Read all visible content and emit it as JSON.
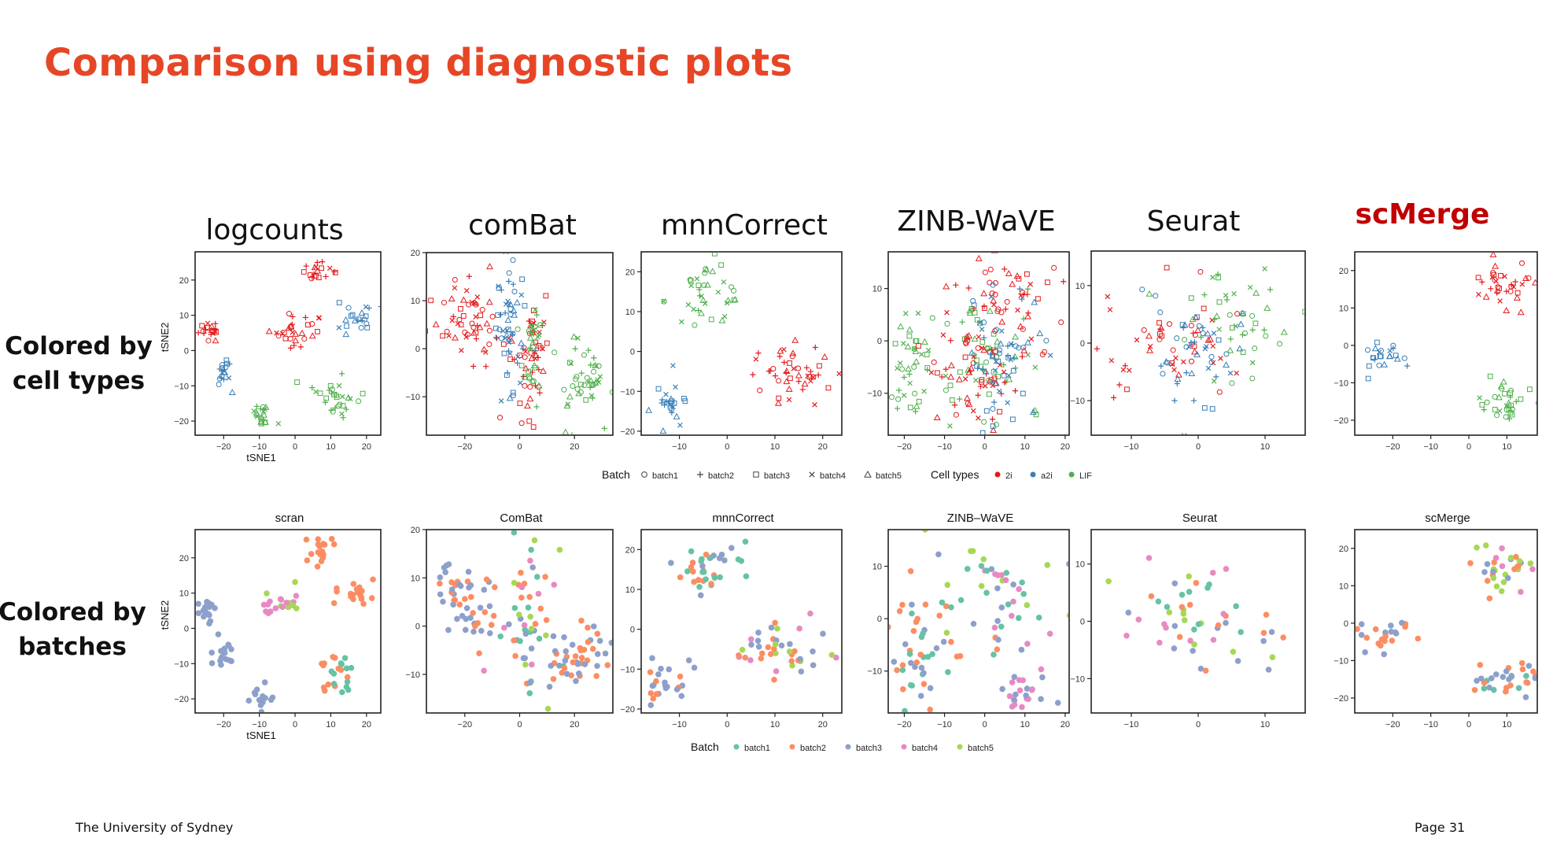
{
  "slide": {
    "title": "Comparison using diagnostic plots",
    "footer_left": "The University of Sydney",
    "footer_right": "Page 31"
  },
  "row_labels": [
    "Colored by\ncell types",
    "Colored by\nbatches"
  ],
  "method_titles": [
    "logcounts",
    "comBat",
    "mnnCorrect",
    "ZINB-WaVE",
    "Seurat",
    "scMerge"
  ],
  "colors": {
    "title": "#e64626",
    "highlight": "#c00000",
    "2i": "#e41a1c",
    "a2i": "#377eb8",
    "LIF": "#4daf4a",
    "batch1": "#66c2a5",
    "batch2": "#fc8d62",
    "batch3": "#8da0cb",
    "batch4": "#e78ac3",
    "batch5": "#a6d854"
  },
  "legend_top": {
    "batch_title": "Batch",
    "batch_items": [
      {
        "label": "batch1",
        "shape": "circle"
      },
      {
        "label": "batch2",
        "shape": "plus"
      },
      {
        "label": "batch3",
        "shape": "square"
      },
      {
        "label": "batch4",
        "shape": "cross"
      },
      {
        "label": "batch5",
        "shape": "triangle"
      }
    ],
    "celltype_title": "Cell types",
    "celltype_items": [
      {
        "label": "2i",
        "color": "#e41a1c"
      },
      {
        "label": "a2i",
        "color": "#377eb8"
      },
      {
        "label": "LIF",
        "color": "#4daf4a"
      }
    ]
  },
  "legend_bottom": {
    "batch_title": "Batch",
    "batch_items": [
      {
        "label": "batch1",
        "color": "#66c2a5"
      },
      {
        "label": "batch2",
        "color": "#fc8d62"
      },
      {
        "label": "batch3",
        "color": "#8da0cb"
      },
      {
        "label": "batch4",
        "color": "#e78ac3"
      },
      {
        "label": "batch5",
        "color": "#a6d854"
      }
    ]
  },
  "chart_data": [
    {
      "id": "top-logcounts",
      "type": "scatter",
      "title": "",
      "xlabel": "tSNE1",
      "ylabel": "tSNE2",
      "xlim": [
        -28,
        24
      ],
      "ylim": [
        -24,
        28
      ],
      "xticks": [
        -20,
        -10,
        0,
        10,
        20
      ],
      "yticks": [
        -20,
        -10,
        0,
        10,
        20
      ],
      "color_by": "cell_type",
      "clusters": [
        {
          "label": "2i",
          "x": -24,
          "y": 6,
          "sx": 1.5,
          "sy": 1.8
        },
        {
          "label": "2i",
          "x": 0,
          "y": 6,
          "sx": 4.5,
          "sy": 2.2
        },
        {
          "label": "2i",
          "x": 6,
          "y": 22,
          "sx": 2,
          "sy": 1.8
        },
        {
          "label": "a2i",
          "x": -20,
          "y": -7,
          "sx": 1.2,
          "sy": 2.2
        },
        {
          "label": "a2i",
          "x": 17,
          "y": 9,
          "sx": 3,
          "sy": 1.8
        },
        {
          "label": "LIF",
          "x": -9,
          "y": -18,
          "sx": 1.5,
          "sy": 2.5
        },
        {
          "label": "LIF",
          "x": 11,
          "y": -13,
          "sx": 3,
          "sy": 3.5
        }
      ]
    },
    {
      "id": "top-combat",
      "type": "scatter",
      "title": "",
      "xlabel": "",
      "ylabel": "",
      "xlim": [
        -34,
        34
      ],
      "ylim": [
        -18,
        20
      ],
      "xticks": [
        -20,
        0,
        20
      ],
      "yticks": [
        -10,
        0,
        10,
        20
      ],
      "color_by": "cell_type",
      "clusters": [
        {
          "label": "2i",
          "x": -18,
          "y": 6,
          "sx": 7,
          "sy": 4
        },
        {
          "label": "2i",
          "x": 3,
          "y": -2,
          "sx": 3,
          "sy": 8
        },
        {
          "label": "a2i",
          "x": -4,
          "y": 3,
          "sx": 3,
          "sy": 9
        },
        {
          "label": "LIF",
          "x": 22,
          "y": -6,
          "sx": 5,
          "sy": 4
        },
        {
          "label": "LIF",
          "x": 5,
          "y": -1,
          "sx": 2,
          "sy": 5
        }
      ]
    },
    {
      "id": "top-mnncorrect",
      "type": "scatter",
      "title": "",
      "xlabel": "",
      "ylabel": "",
      "xlim": [
        -18,
        24
      ],
      "ylim": [
        -21,
        25
      ],
      "xticks": [
        -10,
        0,
        10,
        20
      ],
      "yticks": [
        -20,
        -10,
        0,
        10,
        20
      ],
      "color_by": "cell_type",
      "clusters": [
        {
          "label": "LIF",
          "x": -5,
          "y": 15,
          "sx": 4,
          "sy": 4
        },
        {
          "label": "a2i",
          "x": -12,
          "y": -13,
          "sx": 2.5,
          "sy": 3
        },
        {
          "label": "2i",
          "x": 12,
          "y": -5,
          "sx": 5.5,
          "sy": 4
        }
      ]
    },
    {
      "id": "top-zinbwave",
      "type": "scatter",
      "title": "",
      "xlabel": "",
      "ylabel": "",
      "xlim": [
        -24,
        21
      ],
      "ylim": [
        -18,
        17
      ],
      "xticks": [
        -20,
        -10,
        0,
        10,
        20
      ],
      "yticks": [
        -10,
        0,
        10
      ],
      "color_by": "cell_type",
      "clusters": [
        {
          "label": "LIF",
          "x": -18,
          "y": -5,
          "sx": 3,
          "sy": 6
        },
        {
          "label": "LIF",
          "x": 0,
          "y": -3,
          "sx": 6,
          "sy": 7
        },
        {
          "label": "2i",
          "x": 5,
          "y": 7,
          "sx": 8,
          "sy": 5
        },
        {
          "label": "2i",
          "x": -3,
          "y": -7,
          "sx": 6,
          "sy": 5
        },
        {
          "label": "a2i",
          "x": 5,
          "y": -3,
          "sx": 5,
          "sy": 6
        }
      ]
    },
    {
      "id": "top-seurat",
      "type": "scatter",
      "title": "",
      "xlabel": "",
      "ylabel": "",
      "xlim": [
        -16,
        16
      ],
      "ylim": [
        -16,
        16
      ],
      "xticks": [
        -10,
        0,
        10
      ],
      "yticks": [
        -10,
        0,
        10
      ],
      "color_by": "cell_type",
      "clusters": [
        {
          "label": "2i",
          "x": -5,
          "y": 0,
          "sx": 5,
          "sy": 5
        },
        {
          "label": "a2i",
          "x": 0,
          "y": -3,
          "sx": 4,
          "sy": 5
        },
        {
          "label": "LIF",
          "x": 6,
          "y": 4,
          "sx": 4,
          "sy": 5
        }
      ]
    },
    {
      "id": "top-scmerge",
      "type": "scatter",
      "title": "",
      "xlabel": "",
      "ylabel": "",
      "xlim": [
        -30,
        18
      ],
      "ylim": [
        -24,
        25
      ],
      "xticks": [
        -20,
        -10,
        0,
        10
      ],
      "yticks": [
        -20,
        -10,
        0,
        10,
        20
      ],
      "color_by": "cell_type",
      "clusters": [
        {
          "label": "a2i",
          "x": -22,
          "y": -3,
          "sx": 3.5,
          "sy": 2
        },
        {
          "label": "2i",
          "x": 9,
          "y": 16,
          "sx": 4.5,
          "sy": 3
        },
        {
          "label": "LIF",
          "x": 10,
          "y": -15,
          "sx": 4,
          "sy": 3
        }
      ]
    },
    {
      "id": "bottom-scran",
      "type": "scatter",
      "title": "scran",
      "xlabel": "tSNE1",
      "ylabel": "tSNE2",
      "xlim": [
        -28,
        24
      ],
      "ylim": [
        -24,
        28
      ],
      "xticks": [
        -20,
        -10,
        0,
        10,
        20
      ],
      "yticks": [
        -20,
        -10,
        0,
        10,
        20
      ],
      "color_by": "batch",
      "clusters": [
        {
          "batches": [
            "batch3"
          ],
          "x": -24,
          "y": 5,
          "sx": 1.3,
          "sy": 2.2
        },
        {
          "batches": [
            "batch3"
          ],
          "x": -20,
          "y": -7,
          "sx": 1.3,
          "sy": 2.2
        },
        {
          "batches": [
            "batch3"
          ],
          "x": -9,
          "y": -19,
          "sx": 1.5,
          "sy": 2.5
        },
        {
          "batches": [
            "batch2"
          ],
          "x": 7,
          "y": 22,
          "sx": 1.8,
          "sy": 2
        },
        {
          "batches": [
            "batch2"
          ],
          "x": 17,
          "y": 10,
          "sx": 2.5,
          "sy": 2
        },
        {
          "batches": [
            "batch4",
            "batch5"
          ],
          "x": -4,
          "y": 7,
          "sx": 3,
          "sy": 1.8
        },
        {
          "batches": [
            "batch1",
            "batch2"
          ],
          "x": 11,
          "y": -13,
          "sx": 2.5,
          "sy": 3
        }
      ]
    },
    {
      "id": "bottom-combat",
      "type": "scatter",
      "title": "ComBat",
      "xlabel": "",
      "ylabel": "",
      "xlim": [
        -34,
        34
      ],
      "ylim": [
        -18,
        20
      ],
      "xticks": [
        -20,
        0,
        20
      ],
      "yticks": [
        -10,
        0,
        10,
        20
      ],
      "color_by": "batch",
      "clusters": [
        {
          "batches": [
            "batch2",
            "batch3"
          ],
          "x": -18,
          "y": 5,
          "sx": 6,
          "sy": 4
        },
        {
          "batches": [
            "batch3",
            "batch1",
            "batch5",
            "batch4",
            "batch2"
          ],
          "x": 2,
          "y": 0,
          "sx": 5,
          "sy": 8
        },
        {
          "batches": [
            "batch2",
            "batch3"
          ],
          "x": 22,
          "y": -7,
          "sx": 5,
          "sy": 4
        }
      ]
    },
    {
      "id": "bottom-mnncorrect",
      "type": "scatter",
      "title": "mnnCorrect",
      "xlabel": "",
      "ylabel": "",
      "xlim": [
        -18,
        24
      ],
      "ylim": [
        -21,
        25
      ],
      "xticks": [
        -10,
        0,
        10,
        20
      ],
      "yticks": [
        -20,
        -10,
        0,
        10,
        20
      ],
      "color_by": "batch",
      "clusters": [
        {
          "batches": [
            "batch3",
            "batch2",
            "batch1"
          ],
          "x": -5,
          "y": 15,
          "sx": 4,
          "sy": 4
        },
        {
          "batches": [
            "batch3",
            "batch2"
          ],
          "x": -12,
          "y": -13,
          "sx": 2.5,
          "sy": 3
        },
        {
          "batches": [
            "batch2",
            "batch3",
            "batch5",
            "batch4"
          ],
          "x": 12,
          "y": -6,
          "sx": 5.5,
          "sy": 3.5
        }
      ]
    },
    {
      "id": "bottom-zinbwave",
      "type": "scatter",
      "title": "ZINB–WaVE",
      "xlabel": "",
      "ylabel": "",
      "xlim": [
        -24,
        21
      ],
      "ylim": [
        -18,
        17
      ],
      "xticks": [
        -20,
        -10,
        0,
        10,
        20
      ],
      "yticks": [
        -10,
        0,
        10
      ],
      "color_by": "batch",
      "clusters": [
        {
          "batches": [
            "batch1",
            "batch2",
            "batch3"
          ],
          "x": -17,
          "y": -6,
          "sx": 3,
          "sy": 6
        },
        {
          "batches": [
            "batch2",
            "batch3",
            "batch1",
            "batch4",
            "batch5"
          ],
          "x": 2,
          "y": 2,
          "sx": 8,
          "sy": 7
        },
        {
          "batches": [
            "batch3",
            "batch4"
          ],
          "x": 10,
          "y": -14,
          "sx": 3,
          "sy": 2.5
        }
      ]
    },
    {
      "id": "bottom-seurat",
      "type": "scatter",
      "title": "Seurat",
      "xlabel": "",
      "ylabel": "",
      "xlim": [
        -16,
        16
      ],
      "ylim": [
        -16,
        16
      ],
      "xticks": [
        -10,
        0,
        10
      ],
      "yticks": [
        -10,
        0,
        10
      ],
      "color_by": "batch",
      "clusters": [
        {
          "batches": [
            "batch3",
            "batch2",
            "batch1",
            "batch5",
            "batch4"
          ],
          "x": 0,
          "y": 0,
          "sx": 7,
          "sy": 6
        }
      ]
    },
    {
      "id": "bottom-scmerge",
      "type": "scatter",
      "title": "scMerge",
      "xlabel": "",
      "ylabel": "",
      "xlim": [
        -30,
        18
      ],
      "ylim": [
        -24,
        25
      ],
      "xticks": [
        -20,
        -10,
        0,
        10
      ],
      "yticks": [
        -20,
        -10,
        0,
        10,
        20
      ],
      "color_by": "batch",
      "clusters": [
        {
          "batches": [
            "batch2",
            "batch3"
          ],
          "x": -22,
          "y": -3,
          "sx": 3.5,
          "sy": 2
        },
        {
          "batches": [
            "batch3",
            "batch2",
            "batch4",
            "batch5"
          ],
          "x": 9,
          "y": 15,
          "sx": 4.5,
          "sy": 3
        },
        {
          "batches": [
            "batch1",
            "batch2",
            "batch3"
          ],
          "x": 10,
          "y": -15,
          "sx": 4,
          "sy": 3
        }
      ]
    }
  ]
}
